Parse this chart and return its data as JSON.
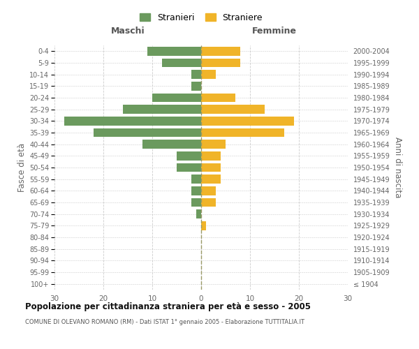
{
  "age_groups": [
    "100+",
    "95-99",
    "90-94",
    "85-89",
    "80-84",
    "75-79",
    "70-74",
    "65-69",
    "60-64",
    "55-59",
    "50-54",
    "45-49",
    "40-44",
    "35-39",
    "30-34",
    "25-29",
    "20-24",
    "15-19",
    "10-14",
    "5-9",
    "0-4"
  ],
  "birth_years": [
    "≤ 1904",
    "1905-1909",
    "1910-1914",
    "1915-1919",
    "1920-1924",
    "1925-1929",
    "1930-1934",
    "1935-1939",
    "1940-1944",
    "1945-1949",
    "1950-1954",
    "1955-1959",
    "1960-1964",
    "1965-1969",
    "1970-1974",
    "1975-1979",
    "1980-1984",
    "1985-1989",
    "1990-1994",
    "1995-1999",
    "2000-2004"
  ],
  "maschi": [
    0,
    0,
    0,
    0,
    0,
    0,
    1,
    2,
    2,
    2,
    5,
    5,
    12,
    22,
    28,
    16,
    10,
    2,
    2,
    8,
    11
  ],
  "femmine": [
    0,
    0,
    0,
    0,
    0,
    1,
    0,
    3,
    3,
    4,
    4,
    4,
    5,
    17,
    19,
    13,
    7,
    0,
    3,
    8,
    8
  ],
  "maschi_color": "#6b9a5e",
  "femmine_color": "#f0b429",
  "title": "Popolazione per cittadinanza straniera per età e sesso - 2005",
  "subtitle": "COMUNE DI OLEVANO ROMANO (RM) - Dati ISTAT 1° gennaio 2005 - Elaborazione TUTTITALIA.IT",
  "ylabel_left": "Fasce di età",
  "ylabel_right": "Anni di nascita",
  "xlabel_maschi": "Maschi",
  "xlabel_femmine": "Femmine",
  "legend_stranieri": "Stranieri",
  "legend_straniere": "Straniere",
  "xlim": 30,
  "background_color": "#ffffff",
  "grid_color": "#cccccc"
}
